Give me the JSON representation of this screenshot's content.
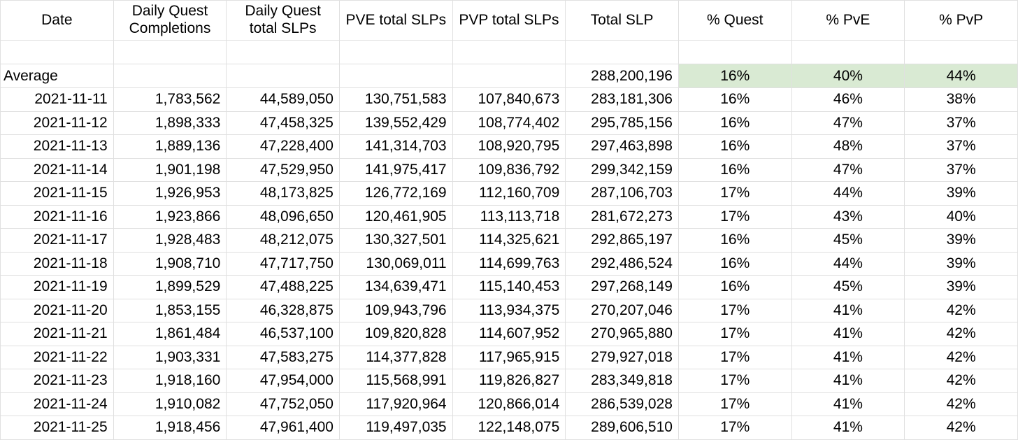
{
  "colors": {
    "highlight_green": "#d9ead3",
    "gridline": "#e0e0e0",
    "text": "#000000",
    "background": "#ffffff"
  },
  "table": {
    "columns": [
      {
        "name": "date",
        "label": "Date"
      },
      {
        "name": "daily-quest-completions",
        "label": "Daily Quest Completions"
      },
      {
        "name": "daily-quest-total-slps",
        "label": "Daily Quest total SLPs"
      },
      {
        "name": "pve-total-slps",
        "label": "PVE total SLPs"
      },
      {
        "name": "pvp-total-slps",
        "label": "PVP total SLPs"
      },
      {
        "name": "total-slp",
        "label": "Total SLP"
      },
      {
        "name": "pct-quest",
        "label": "% Quest"
      },
      {
        "name": "pct-pve",
        "label": "% PvE"
      },
      {
        "name": "pct-pvp",
        "label": "% PvP"
      }
    ],
    "rows": [
      {
        "type": "empty",
        "cells": [
          "",
          "",
          "",
          "",
          "",
          "",
          "",
          "",
          ""
        ]
      },
      {
        "type": "average",
        "cells": [
          "Average",
          "",
          "",
          "",
          "",
          "288,200,196",
          "16%",
          "40%",
          "44%"
        ]
      },
      {
        "type": "data",
        "cells": [
          "2021-11-11",
          "1,783,562",
          "44,589,050",
          "130,751,583",
          "107,840,673",
          "283,181,306",
          "16%",
          "46%",
          "38%"
        ]
      },
      {
        "type": "data",
        "cells": [
          "2021-11-12",
          "1,898,333",
          "47,458,325",
          "139,552,429",
          "108,774,402",
          "295,785,156",
          "16%",
          "47%",
          "37%"
        ]
      },
      {
        "type": "data",
        "cells": [
          "2021-11-13",
          "1,889,136",
          "47,228,400",
          "141,314,703",
          "108,920,795",
          "297,463,898",
          "16%",
          "48%",
          "37%"
        ]
      },
      {
        "type": "data",
        "cells": [
          "2021-11-14",
          "1,901,198",
          "47,529,950",
          "141,975,417",
          "109,836,792",
          "299,342,159",
          "16%",
          "47%",
          "37%"
        ]
      },
      {
        "type": "data",
        "cells": [
          "2021-11-15",
          "1,926,953",
          "48,173,825",
          "126,772,169",
          "112,160,709",
          "287,106,703",
          "17%",
          "44%",
          "39%"
        ]
      },
      {
        "type": "data",
        "cells": [
          "2021-11-16",
          "1,923,866",
          "48,096,650",
          "120,461,905",
          "113,113,718",
          "281,672,273",
          "17%",
          "43%",
          "40%"
        ]
      },
      {
        "type": "data",
        "cells": [
          "2021-11-17",
          "1,928,483",
          "48,212,075",
          "130,327,501",
          "114,325,621",
          "292,865,197",
          "16%",
          "45%",
          "39%"
        ]
      },
      {
        "type": "data",
        "cells": [
          "2021-11-18",
          "1,908,710",
          "47,717,750",
          "130,069,011",
          "114,699,763",
          "292,486,524",
          "16%",
          "44%",
          "39%"
        ]
      },
      {
        "type": "data",
        "cells": [
          "2021-11-19",
          "1,899,529",
          "47,488,225",
          "134,639,471",
          "115,140,453",
          "297,268,149",
          "16%",
          "45%",
          "39%"
        ]
      },
      {
        "type": "data",
        "cells": [
          "2021-11-20",
          "1,853,155",
          "46,328,875",
          "109,943,796",
          "113,934,375",
          "270,207,046",
          "17%",
          "41%",
          "42%"
        ]
      },
      {
        "type": "data",
        "cells": [
          "2021-11-21",
          "1,861,484",
          "46,537,100",
          "109,820,828",
          "114,607,952",
          "270,965,880",
          "17%",
          "41%",
          "42%"
        ]
      },
      {
        "type": "data",
        "cells": [
          "2021-11-22",
          "1,903,331",
          "47,583,275",
          "114,377,828",
          "117,965,915",
          "279,927,018",
          "17%",
          "41%",
          "42%"
        ]
      },
      {
        "type": "data",
        "cells": [
          "2021-11-23",
          "1,918,160",
          "47,954,000",
          "115,568,991",
          "119,826,827",
          "283,349,818",
          "17%",
          "41%",
          "42%"
        ]
      },
      {
        "type": "data",
        "cells": [
          "2021-11-24",
          "1,910,082",
          "47,752,050",
          "117,920,964",
          "120,866,014",
          "286,539,028",
          "17%",
          "41%",
          "42%"
        ]
      },
      {
        "type": "data",
        "cells": [
          "2021-11-25",
          "1,918,456",
          "47,961,400",
          "119,497,035",
          "122,148,075",
          "289,606,510",
          "17%",
          "41%",
          "42%"
        ]
      }
    ]
  }
}
